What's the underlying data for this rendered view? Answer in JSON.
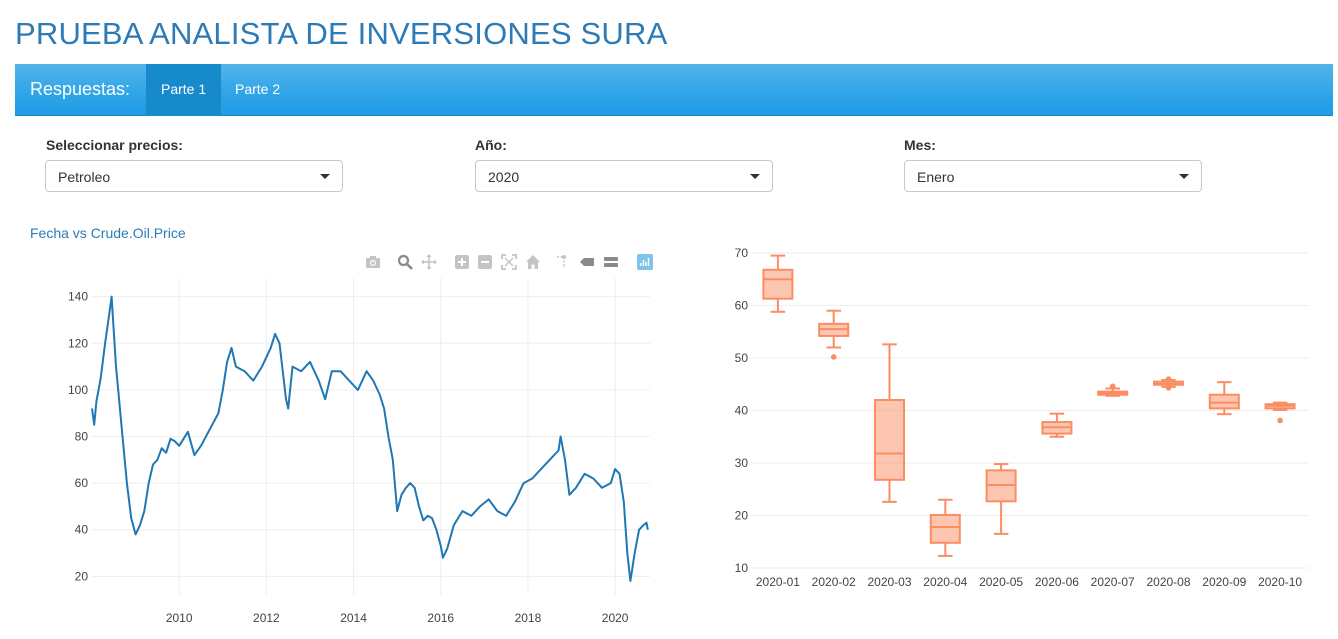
{
  "header": {
    "title": "PRUEBA ANALISTA DE INVERSIONES SURA"
  },
  "navbar": {
    "brand": "Respuestas:",
    "tabs": [
      {
        "label": "Parte 1",
        "active": true
      },
      {
        "label": "Parte 2",
        "active": false
      }
    ]
  },
  "controls": {
    "precio": {
      "label": "Seleccionar precios:",
      "value": "Petroleo"
    },
    "anio": {
      "label": "Año:",
      "value": "2020"
    },
    "mes": {
      "label": "Mes:",
      "value": "Enero"
    }
  },
  "modebar": {
    "icons": [
      "camera-icon",
      "zoom-icon",
      "pan-icon",
      "zoom-in-icon",
      "zoom-out-icon",
      "autoscale-icon",
      "home-icon",
      "spike-lines-icon",
      "hover-closest-icon",
      "hover-compare-icon",
      "plotly-logo-icon"
    ]
  },
  "colors": {
    "line": "#1f77b4",
    "box": "#fc8d62",
    "title": "#2c7bb6",
    "navbar": "#2fa4e7"
  },
  "chart_data": [
    {
      "type": "line",
      "title": "Fecha vs Crude.Oil.Price",
      "xlabel": "",
      "ylabel": "",
      "xlim": [
        2008.0,
        2020.8
      ],
      "ylim": [
        12,
        148
      ],
      "xticks": [
        2010,
        2012,
        2014,
        2016,
        2018,
        2020
      ],
      "yticks": [
        20,
        40,
        60,
        80,
        100,
        120,
        140
      ],
      "grid": true,
      "series": [
        {
          "x": [
            2008.0,
            2008.05,
            2008.1,
            2008.2,
            2008.3,
            2008.4,
            2008.45,
            2008.5,
            2008.55,
            2008.6,
            2008.7,
            2008.8,
            2008.9,
            2009.0,
            2009.1,
            2009.2,
            2009.3,
            2009.4,
            2009.5,
            2009.6,
            2009.7,
            2009.8,
            2009.9,
            2010.0,
            2010.2,
            2010.35,
            2010.5,
            2010.7,
            2010.9,
            2011.0,
            2011.1,
            2011.2,
            2011.3,
            2011.5,
            2011.7,
            2011.9,
            2012.1,
            2012.2,
            2012.3,
            2012.45,
            2012.5,
            2012.6,
            2012.8,
            2013.0,
            2013.2,
            2013.35,
            2013.5,
            2013.7,
            2013.9,
            2014.1,
            2014.3,
            2014.45,
            2014.6,
            2014.7,
            2014.8,
            2014.9,
            2015.0,
            2015.1,
            2015.2,
            2015.3,
            2015.4,
            2015.5,
            2015.6,
            2015.7,
            2015.8,
            2015.9,
            2016.0,
            2016.05,
            2016.15,
            2016.3,
            2016.5,
            2016.7,
            2016.9,
            2017.1,
            2017.3,
            2017.5,
            2017.7,
            2017.9,
            2018.1,
            2018.3,
            2018.5,
            2018.7,
            2018.75,
            2018.85,
            2018.95,
            2019.1,
            2019.3,
            2019.5,
            2019.7,
            2019.9,
            2020.0,
            2020.1,
            2020.2,
            2020.28,
            2020.35,
            2020.45,
            2020.55,
            2020.65,
            2020.72,
            2020.75
          ],
          "y": [
            92,
            85,
            95,
            105,
            120,
            133,
            140,
            125,
            110,
            100,
            80,
            60,
            45,
            38,
            42,
            48,
            60,
            68,
            70,
            75,
            73,
            79,
            78,
            76,
            82,
            72,
            76,
            83,
            90,
            100,
            112,
            118,
            110,
            108,
            104,
            110,
            118,
            124,
            120,
            96,
            92,
            110,
            108,
            112,
            104,
            96,
            108,
            108,
            104,
            100,
            108,
            104,
            98,
            92,
            80,
            70,
            48,
            55,
            58,
            60,
            58,
            50,
            44,
            46,
            45,
            40,
            33,
            28,
            32,
            42,
            48,
            46,
            50,
            53,
            48,
            46,
            52,
            60,
            62,
            66,
            70,
            74,
            80,
            70,
            55,
            58,
            64,
            62,
            58,
            60,
            66,
            64,
            52,
            30,
            18,
            30,
            40,
            42,
            43,
            40
          ]
        }
      ]
    },
    {
      "type": "box",
      "title": "",
      "xlabel": "",
      "ylabel": "",
      "ylim": [
        10,
        70
      ],
      "yticks": [
        10,
        20,
        30,
        40,
        50,
        60,
        70
      ],
      "grid": true,
      "categories": [
        "2020-01",
        "2020-02",
        "2020-03",
        "2020-04",
        "2020-05",
        "2020-06",
        "2020-07",
        "2020-08",
        "2020-09",
        "2020-10"
      ],
      "boxes": [
        {
          "min": 58.8,
          "q1": 61.3,
          "median": 65.0,
          "q3": 66.8,
          "max": 69.5,
          "outliers": []
        },
        {
          "min": 52.0,
          "q1": 54.2,
          "median": 55.5,
          "q3": 56.5,
          "max": 59.0,
          "outliers": [
            50.2
          ]
        },
        {
          "min": 22.6,
          "q1": 26.8,
          "median": 31.8,
          "q3": 42.0,
          "max": 52.6,
          "outliers": []
        },
        {
          "min": 12.3,
          "q1": 14.8,
          "median": 17.8,
          "q3": 20.1,
          "max": 23.0,
          "outliers": []
        },
        {
          "min": 16.5,
          "q1": 22.7,
          "median": 25.8,
          "q3": 28.6,
          "max": 29.8,
          "outliers": []
        },
        {
          "min": 35.0,
          "q1": 35.6,
          "median": 36.8,
          "q3": 37.8,
          "max": 39.4,
          "outliers": []
        },
        {
          "min": 42.8,
          "q1": 43.0,
          "median": 43.3,
          "q3": 43.6,
          "max": 44.2,
          "outliers": [
            44.6
          ]
        },
        {
          "min": 44.5,
          "q1": 44.9,
          "median": 45.1,
          "q3": 45.5,
          "max": 45.8,
          "outliers": [
            44.3,
            46.0
          ]
        },
        {
          "min": 39.3,
          "q1": 40.4,
          "median": 41.5,
          "q3": 43.0,
          "max": 45.4,
          "outliers": []
        },
        {
          "min": 40.1,
          "q1": 40.4,
          "median": 40.9,
          "q3": 41.2,
          "max": 41.5,
          "outliers": [
            38.1
          ]
        }
      ]
    }
  ]
}
